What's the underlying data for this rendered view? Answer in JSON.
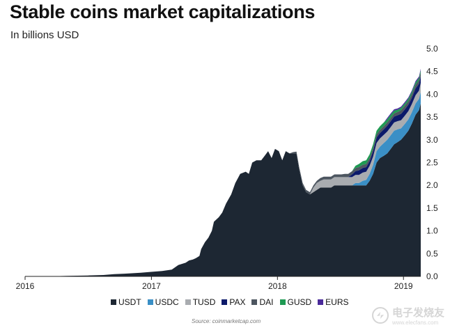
{
  "header": {
    "title": "Stable coins market capitalizations",
    "subtitle": "In billions USD"
  },
  "chart_data": {
    "type": "area",
    "stacked": true,
    "title": "Stable coins market capitalizations",
    "subtitle": "In billions USD",
    "xlabel": "",
    "ylabel": "",
    "xlim": [
      "2016-01-01",
      "2019-02-20"
    ],
    "ylim": [
      0,
      5
    ],
    "y_ticks": [
      "0.0",
      "0.5",
      "1.0",
      "1.5",
      "2.0",
      "2.5",
      "3.0",
      "3.5",
      "4.0",
      "4.5",
      "5.0"
    ],
    "x_ticks": [
      "2016",
      "2017",
      "2018",
      "2019"
    ],
    "y_axis_position": "right",
    "grid": false,
    "legend_position": "bottom",
    "x": [
      "2016-01-01",
      "2016-03-01",
      "2016-05-01",
      "2016-07-01",
      "2016-08-15",
      "2016-09-15",
      "2016-10-15",
      "2016-12-01",
      "2016-12-31",
      "2017-02-01",
      "2017-03-01",
      "2017-03-20",
      "2017-04-10",
      "2017-04-20",
      "2017-05-01",
      "2017-05-10",
      "2017-05-20",
      "2017-05-25",
      "2017-06-05",
      "2017-06-15",
      "2017-06-25",
      "2017-07-01",
      "2017-07-15",
      "2017-07-25",
      "2017-08-05",
      "2017-08-20",
      "2017-09-01",
      "2017-09-15",
      "2017-10-01",
      "2017-10-10",
      "2017-10-20",
      "2017-11-01",
      "2017-11-15",
      "2017-11-25",
      "2017-12-05",
      "2017-12-15",
      "2017-12-25",
      "2018-01-05",
      "2018-01-15",
      "2018-01-25",
      "2018-02-05",
      "2018-02-15",
      "2018-02-25",
      "2018-03-05",
      "2018-03-15",
      "2018-03-25",
      "2018-04-05",
      "2018-04-15",
      "2018-04-25",
      "2018-05-05",
      "2018-05-15",
      "2018-05-25",
      "2018-06-05",
      "2018-06-15",
      "2018-06-25",
      "2018-07-05",
      "2018-07-15",
      "2018-07-25",
      "2018-08-05",
      "2018-08-15",
      "2018-08-25",
      "2018-09-05",
      "2018-09-15",
      "2018-09-25",
      "2018-10-05",
      "2018-10-15",
      "2018-10-25",
      "2018-11-05",
      "2018-11-15",
      "2018-11-25",
      "2018-12-05",
      "2018-12-15",
      "2018-12-25",
      "2019-01-05",
      "2019-01-15",
      "2019-01-25",
      "2019-02-05",
      "2019-02-15",
      "2019-02-20"
    ],
    "series": [
      {
        "name": "USDT",
        "color": "#1d2733",
        "values": [
          0.0,
          0.0,
          0.01,
          0.02,
          0.03,
          0.05,
          0.06,
          0.08,
          0.1,
          0.12,
          0.15,
          0.25,
          0.3,
          0.35,
          0.37,
          0.4,
          0.45,
          0.6,
          0.75,
          0.85,
          1.0,
          1.2,
          1.3,
          1.4,
          1.6,
          1.8,
          2.05,
          2.25,
          2.3,
          2.25,
          2.5,
          2.55,
          2.55,
          2.65,
          2.75,
          2.6,
          2.8,
          2.75,
          2.55,
          2.75,
          2.7,
          2.7,
          2.7,
          2.35,
          2.0,
          1.85,
          1.8,
          1.85,
          1.9,
          1.95,
          1.95,
          1.95,
          1.95,
          2.0,
          2.0,
          2.0,
          2.0,
          2.0,
          2.0,
          2.0,
          2.0,
          2.0,
          2.0,
          2.1,
          2.25,
          2.5,
          2.6,
          2.65,
          2.7,
          2.8,
          2.9,
          2.95,
          3.0,
          3.1,
          3.2,
          3.35,
          3.55,
          3.65,
          3.8
        ]
      },
      {
        "name": "USDC",
        "color": "#3a8fc6",
        "values": [
          0,
          0,
          0,
          0,
          0,
          0,
          0,
          0,
          0,
          0,
          0,
          0,
          0,
          0,
          0,
          0,
          0,
          0,
          0,
          0,
          0,
          0,
          0,
          0,
          0,
          0,
          0,
          0,
          0,
          0,
          0,
          0,
          0,
          0,
          0,
          0,
          0,
          0,
          0,
          0,
          0,
          0,
          0,
          0,
          0,
          0,
          0,
          0,
          0,
          0,
          0,
          0,
          0,
          0,
          0,
          0,
          0,
          0,
          0,
          0.05,
          0.05,
          0.1,
          0.12,
          0.15,
          0.2,
          0.25,
          0.25,
          0.28,
          0.3,
          0.3,
          0.3,
          0.28,
          0.25,
          0.25,
          0.25,
          0.25,
          0.25,
          0.25,
          0.25
        ]
      },
      {
        "name": "TUSD",
        "color": "#a9acb0",
        "values": [
          0,
          0,
          0,
          0,
          0,
          0,
          0,
          0,
          0,
          0,
          0,
          0,
          0,
          0,
          0,
          0,
          0,
          0,
          0,
          0,
          0,
          0,
          0,
          0,
          0,
          0,
          0,
          0,
          0,
          0,
          0,
          0,
          0,
          0,
          0,
          0,
          0,
          0,
          0,
          0,
          0,
          0,
          0,
          0,
          0,
          0,
          0,
          0.1,
          0.15,
          0.15,
          0.18,
          0.18,
          0.18,
          0.18,
          0.18,
          0.18,
          0.18,
          0.18,
          0.18,
          0.18,
          0.18,
          0.18,
          0.18,
          0.18,
          0.18,
          0.18,
          0.18,
          0.18,
          0.18,
          0.18,
          0.18,
          0.18,
          0.18,
          0.18,
          0.18,
          0.18,
          0.18,
          0.18,
          0.2
        ]
      },
      {
        "name": "PAX",
        "color": "#0c1a6a",
        "values": [
          0,
          0,
          0,
          0,
          0,
          0,
          0,
          0,
          0,
          0,
          0,
          0,
          0,
          0,
          0,
          0,
          0,
          0,
          0,
          0,
          0,
          0,
          0,
          0,
          0,
          0,
          0,
          0,
          0,
          0,
          0,
          0,
          0,
          0,
          0,
          0,
          0,
          0,
          0,
          0,
          0,
          0,
          0,
          0,
          0,
          0,
          0,
          0,
          0,
          0,
          0,
          0,
          0,
          0,
          0,
          0,
          0,
          0,
          0.06,
          0.08,
          0.1,
          0.1,
          0.1,
          0.1,
          0.12,
          0.12,
          0.12,
          0.12,
          0.13,
          0.13,
          0.13,
          0.13,
          0.14,
          0.14,
          0.14,
          0.14,
          0.15,
          0.15,
          0.15
        ]
      },
      {
        "name": "DAI",
        "color": "#4d5660",
        "values": [
          0,
          0,
          0,
          0,
          0,
          0,
          0,
          0,
          0,
          0,
          0,
          0,
          0,
          0,
          0,
          0,
          0,
          0,
          0,
          0,
          0,
          0,
          0,
          0,
          0,
          0,
          0,
          0,
          0,
          0,
          0,
          0,
          0,
          0,
          0,
          0,
          0,
          0,
          0,
          0,
          0,
          0.03,
          0.04,
          0.05,
          0.05,
          0.05,
          0.05,
          0.05,
          0.05,
          0.06,
          0.06,
          0.06,
          0.06,
          0.06,
          0.06,
          0.06,
          0.07,
          0.07,
          0.07,
          0.07,
          0.07,
          0.07,
          0.07,
          0.07,
          0.07,
          0.07,
          0.07,
          0.07,
          0.07,
          0.07,
          0.07,
          0.07,
          0.08,
          0.08,
          0.08,
          0.08,
          0.08,
          0.08,
          0.08
        ]
      },
      {
        "name": "GUSD",
        "color": "#1f9a53",
        "values": [
          0,
          0,
          0,
          0,
          0,
          0,
          0,
          0,
          0,
          0,
          0,
          0,
          0,
          0,
          0,
          0,
          0,
          0,
          0,
          0,
          0,
          0,
          0,
          0,
          0,
          0,
          0,
          0,
          0,
          0,
          0,
          0,
          0,
          0,
          0,
          0,
          0,
          0,
          0,
          0,
          0,
          0,
          0,
          0,
          0,
          0,
          0,
          0,
          0,
          0,
          0,
          0,
          0,
          0,
          0,
          0,
          0,
          0,
          0,
          0.05,
          0.07,
          0.08,
          0.08,
          0.08,
          0.08,
          0.08,
          0.08,
          0.08,
          0.07,
          0.07,
          0.06,
          0.05,
          0.05,
          0.05,
          0.05,
          0.05,
          0.05,
          0.05,
          0.05
        ]
      },
      {
        "name": "EURS",
        "color": "#4a2a9a",
        "values": [
          0,
          0,
          0,
          0,
          0,
          0,
          0,
          0,
          0,
          0,
          0,
          0,
          0,
          0,
          0,
          0,
          0,
          0,
          0,
          0,
          0,
          0,
          0,
          0,
          0,
          0,
          0,
          0,
          0,
          0,
          0,
          0,
          0,
          0,
          0,
          0,
          0,
          0,
          0,
          0,
          0,
          0,
          0,
          0,
          0,
          0,
          0,
          0,
          0,
          0,
          0,
          0,
          0,
          0,
          0,
          0,
          0,
          0,
          0,
          0,
          0,
          0,
          0,
          0,
          0,
          0,
          0,
          0,
          0.03,
          0.03,
          0.03,
          0.03,
          0.03,
          0.03,
          0.03,
          0.03,
          0.03,
          0.03,
          0.03
        ]
      }
    ]
  },
  "source": "Source: coinmarketcap.com",
  "watermark": "电子发烧友",
  "watermark_sub": "www.elecfans.com"
}
